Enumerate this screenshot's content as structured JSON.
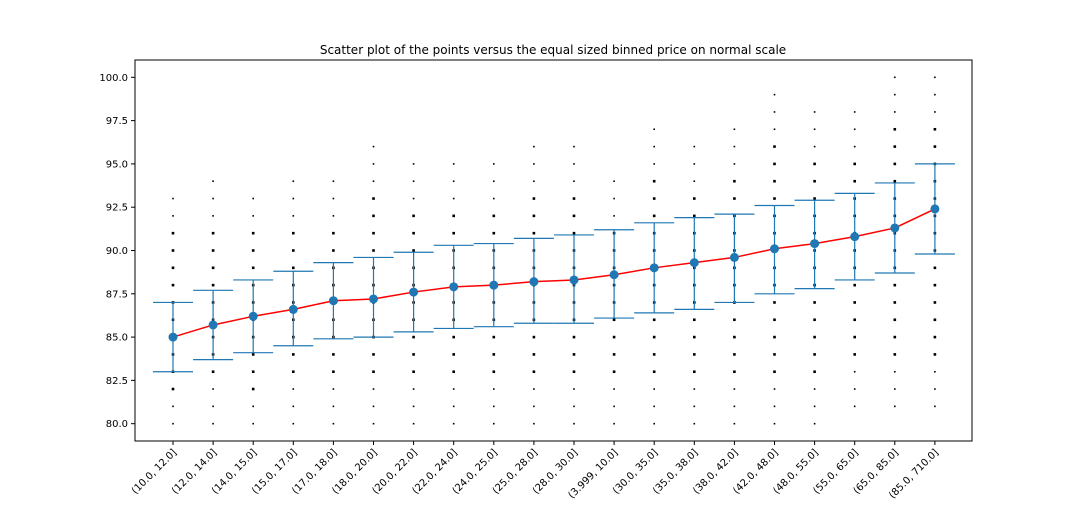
{
  "chart_data": {
    "type": "scatter",
    "title": "Scatter plot of the points versus the equal sized binned price on normal scale",
    "xlabel": "",
    "ylabel": "",
    "categories": [
      "(10.0, 12.0]",
      "(12.0, 14.0]",
      "(14.0, 15.0]",
      "(15.0, 17.0]",
      "(17.0, 18.0]",
      "(18.0, 20.0]",
      "(20.0, 22.0]",
      "(22.0, 24.0]",
      "(24.0, 25.0]",
      "(25.0, 28.0]",
      "(28.0, 30.0]",
      "(3.999, 10.0]",
      "(30.0, 35.0]",
      "(35.0, 38.0]",
      "(38.0, 42.0]",
      "(42.0, 48.0]",
      "(48.0, 55.0]",
      "(55.0, 65.0]",
      "(65.0, 85.0]",
      "(85.0, 710.0]"
    ],
    "ylim": [
      79.0,
      101.0
    ],
    "yticks": [
      "80.0",
      "82.5",
      "85.0",
      "87.5",
      "90.0",
      "92.5",
      "95.0",
      "97.5",
      "100.0"
    ],
    "grid": false,
    "series": [
      {
        "kind": "mean",
        "color": "#1f77b4",
        "line_color": "#ff0000",
        "values": [
          85.0,
          85.7,
          86.2,
          86.6,
          87.1,
          87.2,
          87.6,
          87.9,
          88.0,
          88.2,
          88.3,
          88.6,
          89.0,
          89.3,
          89.6,
          90.1,
          90.4,
          90.8,
          91.3,
          92.4
        ]
      },
      {
        "kind": "error_lower",
        "color": "#1f77b4",
        "values": [
          83.0,
          83.7,
          84.1,
          84.5,
          84.9,
          85.0,
          85.3,
          85.5,
          85.6,
          85.8,
          85.8,
          86.1,
          86.4,
          86.6,
          87.0,
          87.5,
          87.8,
          88.3,
          88.7,
          89.8
        ]
      },
      {
        "kind": "error_upper",
        "color": "#1f77b4",
        "values": [
          87.0,
          87.7,
          88.3,
          88.8,
          89.3,
          89.6,
          89.9,
          90.3,
          90.4,
          90.7,
          90.9,
          91.2,
          91.6,
          91.9,
          92.1,
          92.6,
          92.9,
          93.3,
          93.9,
          95.0
        ]
      },
      {
        "kind": "points",
        "color": "#000000",
        "ranges": [
          [
            80,
            93
          ],
          [
            80,
            94
          ],
          [
            80,
            93
          ],
          [
            80,
            94
          ],
          [
            80,
            94
          ],
          [
            80,
            96
          ],
          [
            80,
            95
          ],
          [
            80,
            95
          ],
          [
            80,
            95
          ],
          [
            80,
            96
          ],
          [
            80,
            96
          ],
          [
            80,
            94
          ],
          [
            80,
            97
          ],
          [
            80,
            96
          ],
          [
            80,
            97
          ],
          [
            80,
            99
          ],
          [
            80,
            98
          ],
          [
            81,
            98
          ],
          [
            81,
            100
          ],
          [
            81,
            100
          ]
        ]
      }
    ]
  }
}
